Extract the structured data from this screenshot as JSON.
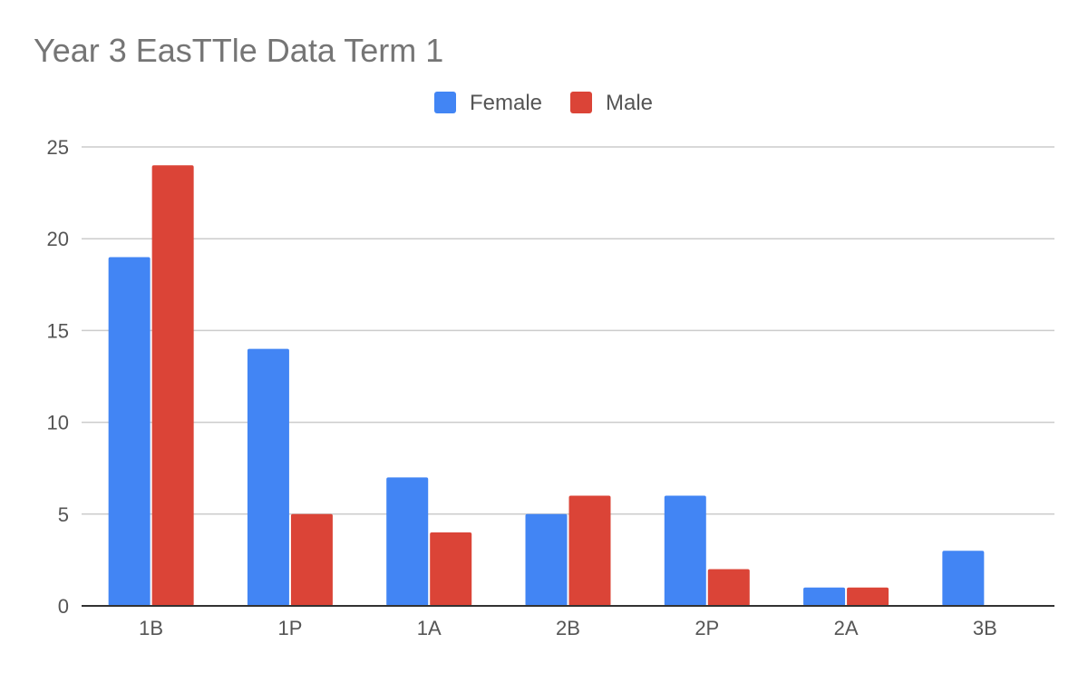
{
  "chart_data": {
    "type": "bar",
    "title": "Year 3 EasTTle Data Term 1",
    "xlabel": "",
    "ylabel": "",
    "categories": [
      "1B",
      "1P",
      "1A",
      "2B",
      "2P",
      "2A",
      "3B"
    ],
    "series": [
      {
        "name": "Female",
        "color": "#4285F4",
        "values": [
          19,
          14,
          7,
          5,
          6,
          1,
          3
        ]
      },
      {
        "name": "Male",
        "color": "#DB4437",
        "values": [
          24,
          5,
          4,
          6,
          2,
          1,
          0
        ]
      }
    ],
    "ylim": [
      0,
      25
    ],
    "yticks": [
      "0",
      "5",
      "10",
      "15",
      "20",
      "25"
    ],
    "grid": true,
    "legend_position": "top"
  }
}
